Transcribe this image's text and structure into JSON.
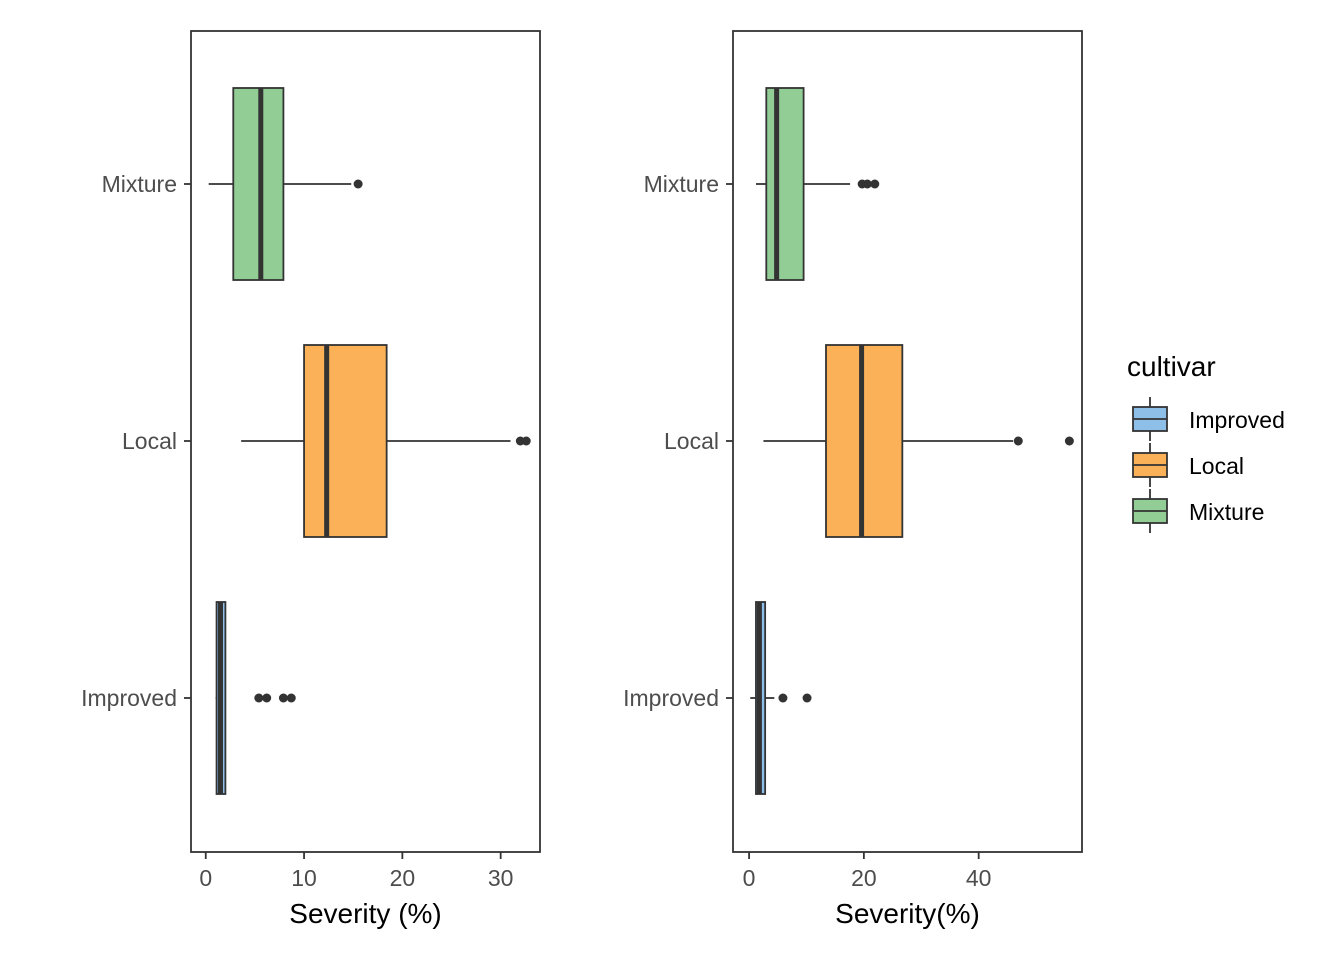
{
  "chart_data": [
    {
      "type": "boxplot",
      "orientation": "horizontal",
      "xlabel": "Severity (%)",
      "xlim": [
        -1.5,
        34
      ],
      "xticks": [
        0,
        10,
        20,
        30
      ],
      "categories": [
        "Improved",
        "Local",
        "Mixture"
      ],
      "boxes": [
        {
          "category": "Improved",
          "whisker_low": 1.0,
          "q1": 1.1,
          "median": 1.5,
          "q3": 2.0,
          "whisker_high": 2.0,
          "outliers": [
            5.4,
            6.2,
            7.9,
            8.7
          ]
        },
        {
          "category": "Local",
          "whisker_low": 3.6,
          "q1": 10.0,
          "median": 12.3,
          "q3": 18.4,
          "whisker_high": 31.0,
          "outliers": [
            32.0,
            32.6
          ]
        },
        {
          "category": "Mixture",
          "whisker_low": 0.3,
          "q1": 2.8,
          "median": 5.6,
          "q3": 7.9,
          "whisker_high": 14.8,
          "outliers": [
            15.5
          ]
        }
      ]
    },
    {
      "type": "boxplot",
      "orientation": "horizontal",
      "xlabel": "Severity(%)",
      "xlim": [
        -2.8,
        58
      ],
      "xticks": [
        0,
        20,
        40
      ],
      "categories": [
        "Improved",
        "Local",
        "Mixture"
      ],
      "boxes": [
        {
          "category": "Improved",
          "whisker_low": 0.2,
          "q1": 1.2,
          "median": 1.8,
          "q3": 2.8,
          "whisker_high": 4.4,
          "outliers": [
            5.9,
            10.1
          ]
        },
        {
          "category": "Local",
          "whisker_low": 2.5,
          "q1": 13.4,
          "median": 19.6,
          "q3": 26.7,
          "whisker_high": 46.0,
          "outliers": [
            46.9,
            55.8
          ]
        },
        {
          "category": "Mixture",
          "whisker_low": 1.2,
          "q1": 3.0,
          "median": 4.8,
          "q3": 9.5,
          "whisker_high": 17.6,
          "outliers": [
            19.7,
            20.6,
            21.9
          ]
        }
      ]
    }
  ],
  "legend": {
    "title": "cultivar",
    "items": [
      {
        "label": "Improved",
        "color": "#8ebfe8"
      },
      {
        "label": "Local",
        "color": "#fbb157"
      },
      {
        "label": "Mixture",
        "color": "#93cd96"
      }
    ]
  },
  "colors": {
    "Improved": "#8ebfe8",
    "Local": "#fbb157",
    "Mixture": "#93cd96",
    "stroke": "#333333"
  }
}
